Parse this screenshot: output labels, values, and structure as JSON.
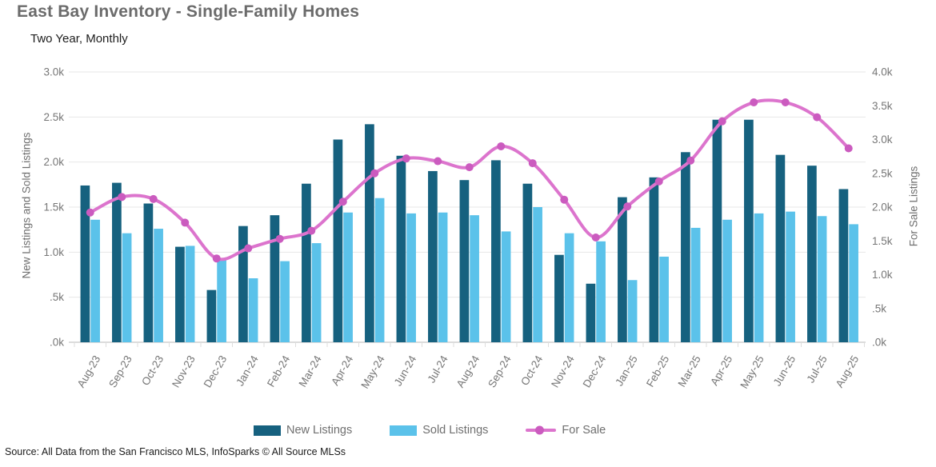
{
  "header": {
    "title": "East Bay Inventory - Single-Family Homes",
    "subtitle": "Two Year, Monthly"
  },
  "source": "Source: All Data from the San Francisco MLS, InfoSparks © All Source MLSs",
  "colors": {
    "new_listings": "#16617F",
    "sold_listings": "#5BC2EA",
    "for_sale_line": "#DC74CD",
    "for_sale_dot": "#CB5BBF",
    "gridline": "#e7e7e7",
    "axis_line": "#c8c8c8",
    "tick_text": "#767676"
  },
  "legend": [
    {
      "label": "New Listings",
      "color": "#16617F",
      "type": "bar"
    },
    {
      "label": "Sold Listings",
      "color": "#5BC2EA",
      "type": "bar"
    },
    {
      "label": "For Sale",
      "color": "#DC74CD",
      "type": "line"
    }
  ],
  "chart_data": {
    "type": "bar",
    "note": "grouped bars on left axis + smoothed line with point markers on right axis",
    "categories": [
      "Aug-23",
      "Sep-23",
      "Oct-23",
      "Nov-23",
      "Dec-23",
      "Jan-24",
      "Feb-24",
      "Mar-24",
      "Apr-24",
      "May-24",
      "Jun-24",
      "Jul-24",
      "Aug-24",
      "Sep-24",
      "Oct-24",
      "Nov-24",
      "Dec-24",
      "Jan-25",
      "Feb-25",
      "Mar-25",
      "Apr-25",
      "May-25",
      "Jun-25",
      "Jul-25",
      "Aug-25"
    ],
    "series": [
      {
        "name": "New Listings",
        "type": "bar",
        "axis": "left",
        "color": "#16617F",
        "values": [
          1740,
          1770,
          1540,
          1060,
          580,
          1290,
          1410,
          1760,
          2250,
          2420,
          2070,
          1900,
          1800,
          2020,
          1760,
          970,
          650,
          1610,
          1830,
          2110,
          2470,
          2470,
          2080,
          1960,
          1700
        ]
      },
      {
        "name": "Sold Listings",
        "type": "bar",
        "axis": "left",
        "color": "#5BC2EA",
        "values": [
          1360,
          1210,
          1260,
          1070,
          910,
          710,
          900,
          1100,
          1440,
          1600,
          1430,
          1440,
          1410,
          1230,
          1500,
          1210,
          1120,
          690,
          950,
          1270,
          1360,
          1430,
          1450,
          1400,
          1310
        ]
      },
      {
        "name": "For Sale",
        "type": "line",
        "axis": "right",
        "color": "#DC74CD",
        "marker_color": "#CB5BBF",
        "values": [
          1920,
          2150,
          2120,
          1770,
          1240,
          1390,
          1530,
          1650,
          2080,
          2500,
          2720,
          2680,
          2590,
          2900,
          2650,
          2110,
          1550,
          2010,
          2380,
          2690,
          3270,
          3550,
          3550,
          3330,
          2870
        ]
      }
    ],
    "left_axis": {
      "title": "New Listings and Sold Listings",
      "min": 0,
      "max": 3000,
      "ticks": [
        "3.0k",
        "2.5k",
        "2.0k",
        "1.5k",
        "1.0k",
        ".5k",
        ".0k"
      ]
    },
    "right_axis": {
      "title": "For Sale Listings",
      "min": 0,
      "max": 4000,
      "ticks": [
        "4.0k",
        "3.5k",
        "3.0k",
        "2.5k",
        "2.0k",
        "1.5k",
        "1.0k",
        ".5k",
        ".0k"
      ]
    },
    "grid": true,
    "legend_position": "bottom"
  }
}
